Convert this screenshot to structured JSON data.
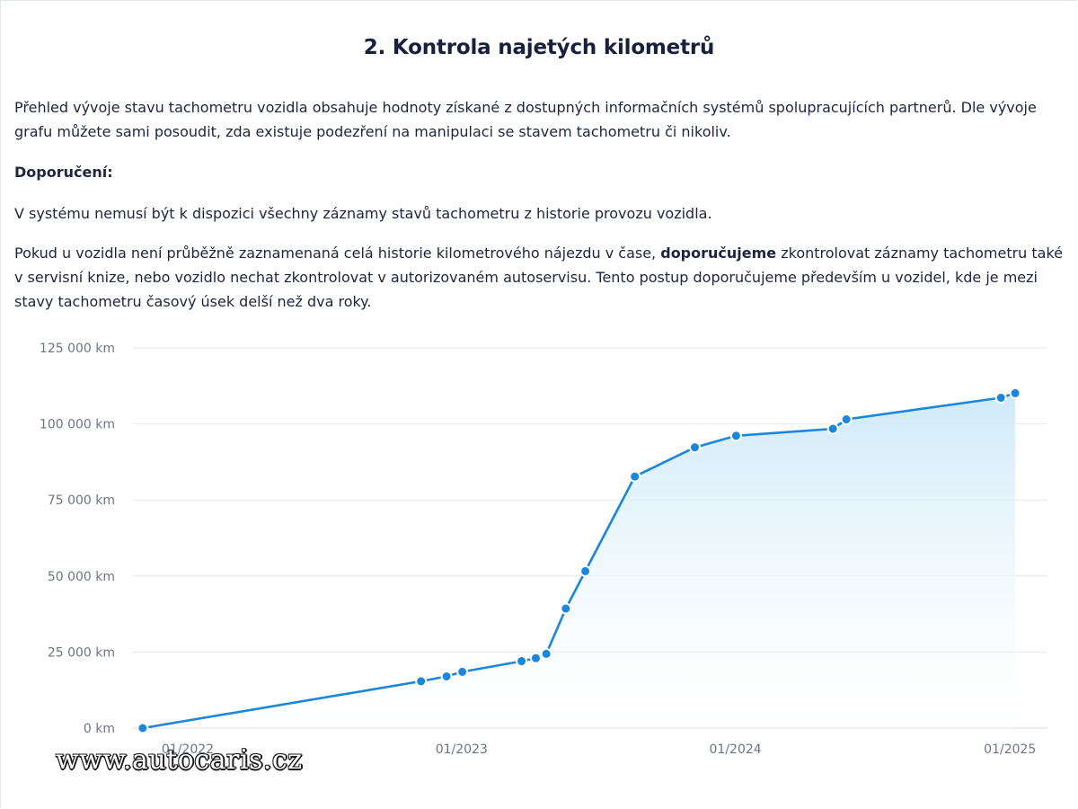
{
  "section": {
    "title": "2. Kontrola najetých kilometrů"
  },
  "intro": {
    "line1": "Přehled vývoje stavu tachometru vozidla obsahuje hodnoty získané z dostupných informačních systémů spolupracujících partnerů. Dle vývoje",
    "line2": "grafu můžete sami posoudit, zda existuje podezření na manipulaci se stavem tachometru či nikoliv."
  },
  "recommendation": {
    "heading": "Doporučení:",
    "note": "V systému nemusí být k dispozici všechny záznamy stavů tachometru z historie provozu vozidla.",
    "detail_line1_before": "Pokud u vozidla není průběžně zaznamenaná celá historie kilometrového nájezdu v čase, ",
    "detail_line1_bold": "doporučujeme",
    "detail_line1_after": " zkontrolovat záznamy tachometru také",
    "detail_line2": "v servisní knize, nebo vozidlo nechat zkontrolovat v autorizovaném autoservisu. Tento postup doporučujeme především u vozidel, kde je mezi",
    "detail_line3": "stavy tachometru časový úsek delší než dva roky."
  },
  "watermark": {
    "text": "www.autocaris.cz"
  },
  "chart_data": {
    "type": "area",
    "title": "",
    "xlabel": "",
    "ylabel": "",
    "ylim": [
      0,
      125000
    ],
    "xlim": [
      "2021-10-20",
      "2025-02-20"
    ],
    "y_ticks": [
      {
        "value": 0,
        "label": "0 km"
      },
      {
        "value": 25000,
        "label": "25 000 km"
      },
      {
        "value": 50000,
        "label": "50 000 km"
      },
      {
        "value": 75000,
        "label": "75 000 km"
      },
      {
        "value": 100000,
        "label": "100 000 km"
      },
      {
        "value": 125000,
        "label": "125 000 km"
      }
    ],
    "x_ticks": [
      {
        "value": "2022-01-01",
        "label": "01/2022"
      },
      {
        "value": "2023-01-01",
        "label": "01/2023"
      },
      {
        "value": "2024-01-01",
        "label": "01/2024"
      },
      {
        "value": "2025-01-01",
        "label": "01/2025"
      }
    ],
    "grid": "horizontal",
    "colors": {
      "line": "#1a86dc",
      "point": "#1a86dc",
      "area_top": "#cce9f8",
      "grid": "#e4e7ec",
      "tick_text": "#6d7484"
    },
    "series": [
      {
        "points": [
          {
            "x": "2021-11-02",
            "y": 0
          },
          {
            "x": "2022-11-08",
            "y": 15400
          },
          {
            "x": "2022-12-12",
            "y": 17000
          },
          {
            "x": "2023-01-02",
            "y": 18500
          },
          {
            "x": "2023-03-22",
            "y": 22000
          },
          {
            "x": "2023-04-10",
            "y": 23000
          },
          {
            "x": "2023-04-24",
            "y": 24400
          },
          {
            "x": "2023-05-20",
            "y": 39300
          },
          {
            "x": "2023-06-15",
            "y": 51600
          },
          {
            "x": "2023-08-20",
            "y": 82700
          },
          {
            "x": "2023-11-08",
            "y": 92300
          },
          {
            "x": "2024-01-02",
            "y": 96100
          },
          {
            "x": "2024-05-10",
            "y": 98400
          },
          {
            "x": "2024-05-28",
            "y": 101500
          },
          {
            "x": "2024-12-20",
            "y": 108600
          },
          {
            "x": "2025-01-08",
            "y": 110100
          }
        ]
      }
    ]
  }
}
